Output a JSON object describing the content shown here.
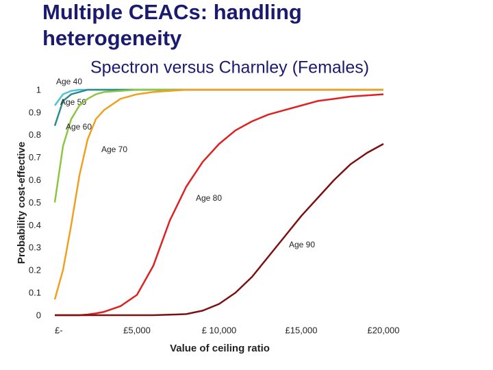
{
  "title": "Multiple CEACs: handling heterogeneity",
  "chart_data": {
    "type": "line",
    "subtitle": "Spectron versus Charnley (Females)",
    "x_label": "Value of ceiling ratio",
    "y_label": "Probability cost-effective",
    "xlim": [
      0,
      20000
    ],
    "ylim": [
      0,
      1
    ],
    "xticks": [
      {
        "value": 0,
        "label": "£-"
      },
      {
        "value": 5000,
        "label": "£5,000"
      },
      {
        "value": 10000,
        "label": "£ 10,000"
      },
      {
        "value": 15000,
        "label": "£15,000"
      },
      {
        "value": 20000,
        "label": "£20,000"
      }
    ],
    "yticks": [
      0,
      0.1,
      0.2,
      0.3,
      0.4,
      0.5,
      0.6,
      0.7,
      0.8,
      0.9,
      1
    ],
    "x": [
      0,
      500,
      1000,
      1500,
      2000,
      2500,
      3000,
      4000,
      5000,
      6000,
      7000,
      8000,
      9000,
      10000,
      11000,
      12000,
      13000,
      14000,
      15000,
      16000,
      17000,
      18000,
      19000,
      20000
    ],
    "series": [
      {
        "name": "Age 40",
        "color": "#4fc3d0",
        "values": [
          0.93,
          0.98,
          0.995,
          1,
          1,
          1,
          1,
          1,
          1,
          1,
          1,
          1,
          1,
          1,
          1,
          1,
          1,
          1,
          1,
          1,
          1,
          1,
          1,
          1
        ]
      },
      {
        "name": "Age 50",
        "color": "#2a8c8c",
        "values": [
          0.84,
          0.95,
          0.98,
          0.99,
          1,
          1,
          1,
          1,
          1,
          1,
          1,
          1,
          1,
          1,
          1,
          1,
          1,
          1,
          1,
          1,
          1,
          1,
          1,
          1
        ]
      },
      {
        "name": "Age 60",
        "color": "#8cc63f",
        "values": [
          0.5,
          0.75,
          0.87,
          0.93,
          0.96,
          0.98,
          0.99,
          0.995,
          1,
          1,
          1,
          1,
          1,
          1,
          1,
          1,
          1,
          1,
          1,
          1,
          1,
          1,
          1,
          1
        ]
      },
      {
        "name": "Age 70",
        "color": "#f0a020",
        "values": [
          0.07,
          0.2,
          0.4,
          0.62,
          0.78,
          0.87,
          0.91,
          0.96,
          0.98,
          0.99,
          0.995,
          1,
          1,
          1,
          1,
          1,
          1,
          1,
          1,
          1,
          1,
          1,
          1,
          1
        ]
      },
      {
        "name": "Age 80",
        "color": "#e02020",
        "values": [
          0,
          0,
          0,
          0,
          0.003,
          0.008,
          0.015,
          0.04,
          0.09,
          0.22,
          0.42,
          0.57,
          0.68,
          0.76,
          0.82,
          0.86,
          0.89,
          0.91,
          0.93,
          0.95,
          0.96,
          0.97,
          0.975,
          0.98
        ]
      },
      {
        "name": "Age 90",
        "color": "#7a1010",
        "values": [
          0,
          0,
          0,
          0,
          0,
          0,
          0,
          0,
          0,
          0,
          0.002,
          0.005,
          0.02,
          0.05,
          0.1,
          0.17,
          0.26,
          0.35,
          0.44,
          0.52,
          0.6,
          0.67,
          0.72,
          0.76
        ]
      }
    ]
  }
}
